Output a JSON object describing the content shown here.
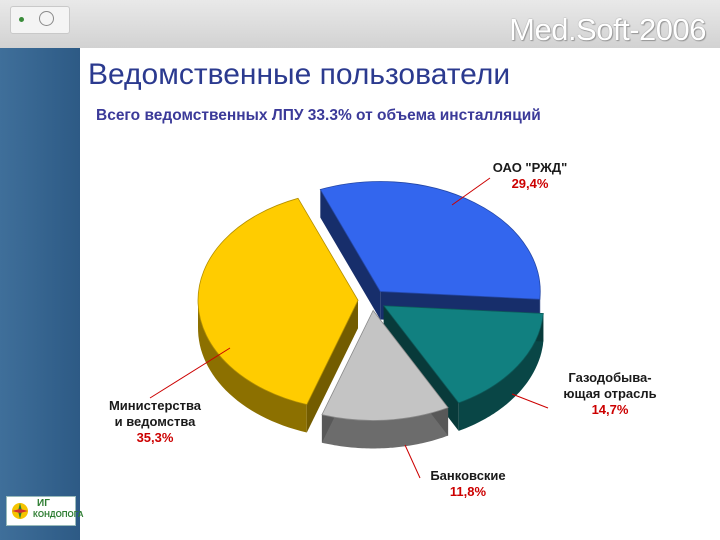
{
  "header": {
    "brand": "Med.Soft-2006"
  },
  "slide": {
    "title": "Ведомственные пользователи",
    "subtitle": "Всего ведомственных ЛПУ 33.3% от объема инсталляций"
  },
  "logo": {
    "text_top": "ИГ",
    "text_bottom": "КОНДОПОГА"
  },
  "colors": {
    "title": "#2b3a8f",
    "subtitle": "#3b3a99",
    "label_value": "#cc0000",
    "sidebar": "#2d5a85"
  },
  "chart_data": {
    "type": "pie",
    "style": "3d-exploded",
    "slices": [
      {
        "label_lines": [
          "ОАО \"РЖД\""
        ],
        "value": 29.4,
        "value_text": "29,4%",
        "color": "#3366ee"
      },
      {
        "label_lines": [
          "Газодобыва-",
          "ющая отрасль"
        ],
        "value": 14.7,
        "value_text": "14,7%",
        "color": "#118080"
      },
      {
        "label_lines": [
          "Банковские"
        ],
        "value": 11.8,
        "value_text": "11,8%",
        "color": "#c4c4c4"
      },
      {
        "label_lines": [
          "Министерства",
          "и ведомства"
        ],
        "value": 35.3,
        "value_text": "35,3%",
        "color": "#ffcc00"
      }
    ]
  }
}
